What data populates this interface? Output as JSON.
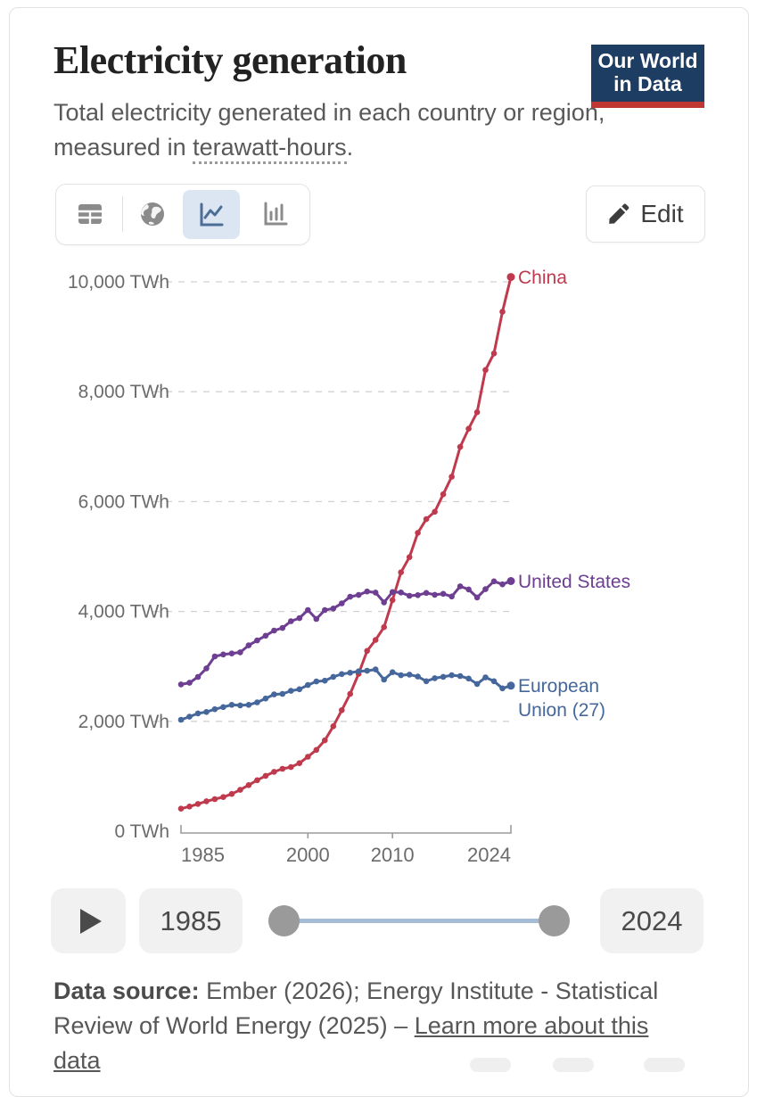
{
  "header": {
    "title": "Electricity generation",
    "subtitle_prefix": "Total electricity generated in each country or region, measured in ",
    "subtitle_link": "terawatt-hours",
    "subtitle_suffix": ".",
    "logo_line1": "Our World",
    "logo_line2": "in Data",
    "logo_colors": {
      "background": "#1d3d63",
      "underline": "#bf3632"
    }
  },
  "toolbar": {
    "views": [
      "table",
      "map",
      "line-chart",
      "bar-chart"
    ],
    "active_view": "line-chart",
    "icons": [
      "table-icon",
      "globe-icon",
      "line-chart-icon",
      "bar-chart-icon"
    ],
    "edit_label": "Edit",
    "edit_icon": "pencil-icon",
    "active_tab_bg": "#dbe6f2",
    "active_icon_color": "#4c6e96",
    "inactive_icon_color": "#8b8b8b"
  },
  "chart_data": {
    "type": "line",
    "title": "Electricity generation",
    "unit": "TWh",
    "grid": "dashed",
    "legend_position": "line-end-labels",
    "x": [
      1985,
      1986,
      1987,
      1988,
      1989,
      1990,
      1991,
      1992,
      1993,
      1994,
      1995,
      1996,
      1997,
      1998,
      1999,
      2000,
      2001,
      2002,
      2003,
      2004,
      2005,
      2006,
      2007,
      2008,
      2009,
      2010,
      2011,
      2012,
      2013,
      2014,
      2015,
      2016,
      2017,
      2018,
      2019,
      2020,
      2021,
      2022,
      2023,
      2024
    ],
    "xlim": [
      1985,
      2024
    ],
    "ylim": [
      0,
      10000
    ],
    "xticks": [
      1985,
      2000,
      2010,
      2024
    ],
    "yticks": [
      {
        "value": 0,
        "label": "0 TWh"
      },
      {
        "value": 2000,
        "label": "2,000 TWh"
      },
      {
        "value": 4000,
        "label": "4,000 TWh"
      },
      {
        "value": 6000,
        "label": "6,000 TWh"
      },
      {
        "value": 8000,
        "label": "8,000 TWh"
      },
      {
        "value": 10000,
        "label": "10,000 TWh"
      }
    ],
    "series": [
      {
        "name": "China",
        "color": "#c03a4e",
        "values": [
          411,
          450,
          497,
          545,
          585,
          621,
          678,
          754,
          839,
          928,
          1008,
          1081,
          1136,
          1167,
          1239,
          1356,
          1481,
          1654,
          1911,
          2203,
          2500,
          2866,
          3282,
          3482,
          3715,
          4207,
          4713,
          4988,
          5432,
          5680,
          5815,
          6133,
          6453,
          6995,
          7326,
          7627,
          8396,
          8696,
          9456,
          10087
        ]
      },
      {
        "name": "United States",
        "color": "#6d3e91",
        "values": [
          2672,
          2702,
          2808,
          2964,
          3182,
          3218,
          3235,
          3257,
          3383,
          3473,
          3558,
          3652,
          3700,
          3823,
          3879,
          4026,
          3864,
          4026,
          4054,
          4148,
          4268,
          4300,
          4363,
          4344,
          4165,
          4354,
          4346,
          4286,
          4297,
          4337,
          4303,
          4322,
          4272,
          4457,
          4401,
          4255,
          4406,
          4548,
          4494,
          4553
        ]
      },
      {
        "name": "European Union (27)",
        "color": "#45679b",
        "values": [
          2030,
          2085,
          2145,
          2170,
          2220,
          2260,
          2300,
          2290,
          2300,
          2345,
          2415,
          2490,
          2500,
          2555,
          2585,
          2660,
          2725,
          2740,
          2810,
          2860,
          2885,
          2910,
          2920,
          2945,
          2760,
          2895,
          2840,
          2850,
          2815,
          2730,
          2785,
          2810,
          2840,
          2825,
          2780,
          2680,
          2800,
          2730,
          2600,
          2650
        ]
      }
    ]
  },
  "timeline": {
    "play_icon": "play-icon",
    "start_year": "1985",
    "end_year": "2024",
    "track_color": "#a6bcd4",
    "handle_color": "#9a9a9a"
  },
  "footer": {
    "source_label": "Data source:",
    "source_text": " Ember (2026); Energy Institute - Statistical Review of World Energy (2025) – ",
    "link_text": "Learn more about this data"
  }
}
